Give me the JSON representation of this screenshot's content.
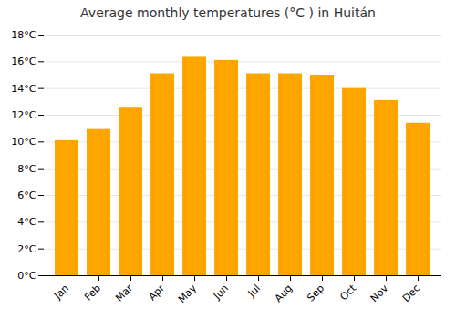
{
  "chart_data": {
    "type": "bar",
    "title": "Average monthly temperatures (°C ) in Huitán",
    "categories": [
      "Jan",
      "Feb",
      "Mar",
      "Apr",
      "May",
      "Jun",
      "Jul",
      "Aug",
      "Sep",
      "Oct",
      "Nov",
      "Dec"
    ],
    "values": [
      10.1,
      11.0,
      12.6,
      15.1,
      16.4,
      16.1,
      15.1,
      15.1,
      15.0,
      14.0,
      13.1,
      11.4
    ],
    "color": "#FFA500",
    "ylim": [
      0,
      18
    ],
    "yticks": [
      {
        "value": 0,
        "label": "0°C"
      },
      {
        "value": 2,
        "label": "2°C"
      },
      {
        "value": 4,
        "label": "4°C"
      },
      {
        "value": 6,
        "label": "6°C"
      },
      {
        "value": 8,
        "label": "8°C"
      },
      {
        "value": 10,
        "label": "10°C"
      },
      {
        "value": 12,
        "label": "12°C"
      },
      {
        "value": 14,
        "label": "14°C"
      },
      {
        "value": 16,
        "label": "16°C"
      },
      {
        "value": 18,
        "label": "18°C"
      }
    ],
    "grid": true
  }
}
